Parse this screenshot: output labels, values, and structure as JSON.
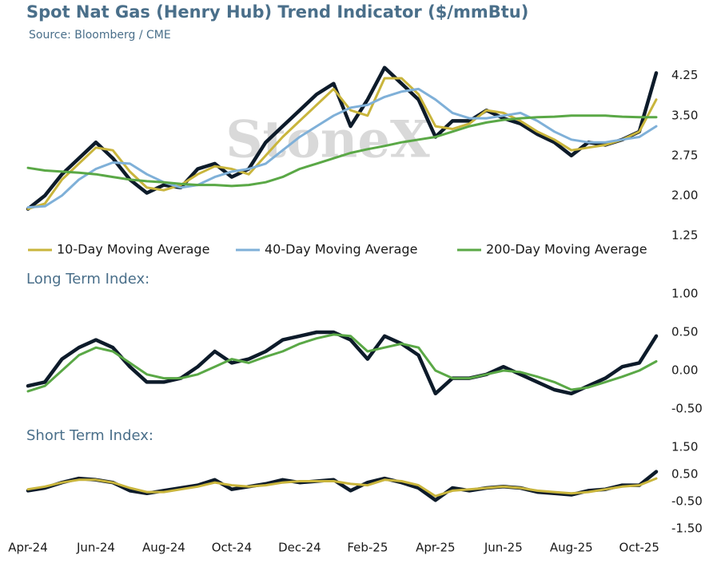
{
  "chart_data": [
    {
      "type": "line",
      "title": "Spot Nat Gas (Henry Hub) Trend Indicator ($/mmBtu)",
      "subtitle": "Source: Bloomberg / CME",
      "watermark": "StoneX",
      "ylim": [
        1.25,
        4.5
      ],
      "yticks": [
        1.25,
        {
          "value": 2,
          "label": "2.00"
        },
        2.75,
        {
          "value": 3.5,
          "label": "3.50"
        },
        4.25
      ],
      "legend": "bottom",
      "series": [
        {
          "color": "#0d1b2a",
          "values": [
            1.75,
            2.0,
            2.4,
            2.7,
            3.0,
            2.7,
            2.3,
            2.05,
            2.2,
            2.15,
            2.5,
            2.6,
            2.35,
            2.5,
            3.0,
            3.3,
            3.6,
            3.9,
            4.1,
            3.3,
            3.8,
            4.4,
            4.1,
            3.8,
            3.1,
            3.4,
            3.4,
            3.6,
            3.45,
            3.35,
            3.15,
            3.0,
            2.75,
            3.0,
            2.95,
            3.05,
            3.2,
            4.3
          ]
        },
        {
          "name": "10-Day Moving Average",
          "color": "#c9b53c",
          "values": [
            1.75,
            1.85,
            2.3,
            2.6,
            2.9,
            2.85,
            2.45,
            2.15,
            2.1,
            2.2,
            2.4,
            2.55,
            2.5,
            2.4,
            2.75,
            3.1,
            3.4,
            3.7,
            4.0,
            3.6,
            3.5,
            4.2,
            4.2,
            3.9,
            3.3,
            3.25,
            3.35,
            3.6,
            3.55,
            3.4,
            3.2,
            3.05,
            2.85,
            2.9,
            2.95,
            3.05,
            3.2,
            3.8
          ]
        },
        {
          "name": "40-Day Moving Average",
          "color": "#7fb0d8",
          "values": [
            1.78,
            1.8,
            2.0,
            2.3,
            2.5,
            2.62,
            2.6,
            2.4,
            2.25,
            2.15,
            2.2,
            2.35,
            2.45,
            2.5,
            2.6,
            2.85,
            3.1,
            3.3,
            3.5,
            3.65,
            3.7,
            3.85,
            3.95,
            4.0,
            3.8,
            3.55,
            3.45,
            3.45,
            3.5,
            3.55,
            3.4,
            3.2,
            3.05,
            3.0,
            3.0,
            3.05,
            3.1,
            3.3
          ]
        },
        {
          "name": "200-Day Moving Average",
          "color": "#5aa846",
          "values": [
            2.52,
            2.47,
            2.45,
            2.43,
            2.4,
            2.35,
            2.3,
            2.27,
            2.25,
            2.22,
            2.2,
            2.2,
            2.18,
            2.2,
            2.25,
            2.35,
            2.5,
            2.6,
            2.7,
            2.8,
            2.87,
            2.93,
            3.0,
            3.05,
            3.1,
            3.2,
            3.3,
            3.37,
            3.42,
            3.45,
            3.47,
            3.48,
            3.5,
            3.5,
            3.5,
            3.48,
            3.47,
            3.47
          ]
        }
      ]
    },
    {
      "type": "line",
      "title": "Long Term Index:",
      "ylim": [
        -0.5,
        1.0
      ],
      "yticks": [
        {
          "value": -0.5,
          "label": "-0.50"
        },
        {
          "value": 0,
          "label": "0.00"
        },
        {
          "value": 0.5,
          "label": "0.50"
        },
        {
          "value": 1,
          "label": "1.00"
        }
      ],
      "series": [
        {
          "color": "#0d1b2a",
          "values": [
            -0.2,
            -0.15,
            0.15,
            0.3,
            0.4,
            0.3,
            0.05,
            -0.15,
            -0.15,
            -0.1,
            0.05,
            0.25,
            0.1,
            0.15,
            0.25,
            0.4,
            0.45,
            0.5,
            0.5,
            0.4,
            0.15,
            0.45,
            0.35,
            0.2,
            -0.3,
            -0.1,
            -0.1,
            -0.05,
            0.05,
            -0.05,
            -0.15,
            -0.25,
            -0.3,
            -0.2,
            -0.1,
            0.05,
            0.1,
            0.45
          ]
        },
        {
          "color": "#5aa846",
          "values": [
            -0.27,
            -0.2,
            0.0,
            0.2,
            0.3,
            0.25,
            0.1,
            -0.05,
            -0.1,
            -0.1,
            -0.05,
            0.05,
            0.15,
            0.1,
            0.18,
            0.25,
            0.35,
            0.42,
            0.47,
            0.45,
            0.25,
            0.3,
            0.35,
            0.3,
            0.0,
            -0.1,
            -0.1,
            -0.05,
            0.0,
            -0.02,
            -0.08,
            -0.15,
            -0.25,
            -0.22,
            -0.15,
            -0.08,
            0.0,
            0.12
          ]
        }
      ]
    },
    {
      "type": "line",
      "title": "Short Term Index:",
      "ylim": [
        -1.5,
        1.5
      ],
      "yticks": [
        {
          "value": -1.5,
          "label": "-1.50"
        },
        {
          "value": -0.5,
          "label": "-0.50"
        },
        {
          "value": 0.5,
          "label": "0.50"
        },
        {
          "value": 1.5,
          "label": "1.50"
        }
      ],
      "categories": [
        "Apr-24",
        null,
        null,
        null,
        "Jun-24",
        null,
        null,
        null,
        "Aug-24",
        null,
        null,
        null,
        "Oct-24",
        null,
        null,
        null,
        "Dec-24",
        null,
        null,
        null,
        "Feb-25",
        null,
        null,
        null,
        "Apr-25",
        null,
        null,
        null,
        "Jun-25",
        null,
        null,
        null,
        "Aug-25",
        null,
        null,
        null,
        "Oct-25",
        null
      ],
      "series": [
        {
          "color": "#0d1b2a",
          "values": [
            -0.1,
            0.0,
            0.2,
            0.35,
            0.3,
            0.2,
            -0.1,
            -0.2,
            -0.1,
            0.0,
            0.1,
            0.3,
            -0.05,
            0.05,
            0.15,
            0.3,
            0.2,
            0.25,
            0.3,
            -0.1,
            0.2,
            0.35,
            0.2,
            0.0,
            -0.45,
            0.0,
            -0.1,
            0.0,
            0.05,
            0.0,
            -0.15,
            -0.2,
            -0.25,
            -0.1,
            -0.05,
            0.1,
            0.1,
            0.6
          ]
        },
        {
          "color": "#c9b53c",
          "values": [
            -0.05,
            0.05,
            0.2,
            0.3,
            0.3,
            0.2,
            0.0,
            -0.15,
            -0.15,
            -0.05,
            0.05,
            0.2,
            0.1,
            0.05,
            0.1,
            0.2,
            0.25,
            0.25,
            0.25,
            0.15,
            0.1,
            0.3,
            0.25,
            0.1,
            -0.3,
            -0.1,
            -0.05,
            0.0,
            0.05,
            0.0,
            -0.1,
            -0.15,
            -0.2,
            -0.15,
            -0.05,
            0.05,
            0.1,
            0.35
          ]
        }
      ]
    }
  ]
}
